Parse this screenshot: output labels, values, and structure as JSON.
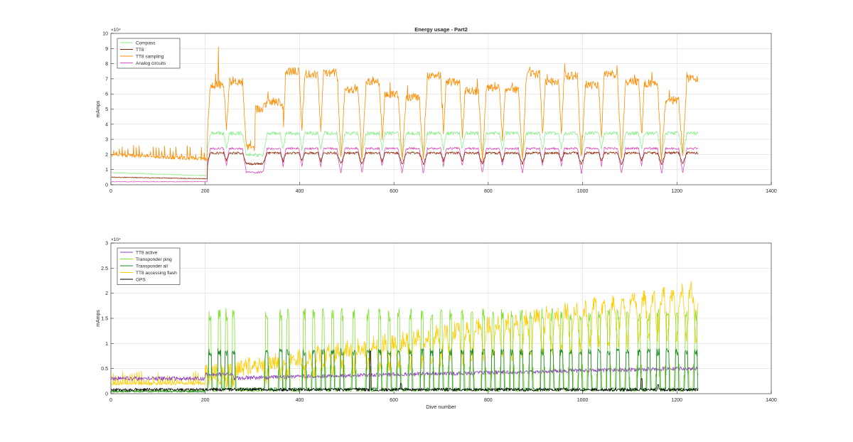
{
  "chart_data": [
    {
      "type": "line",
      "title": "Energy usage - Part2",
      "xlabel": "",
      "ylabel": "mAmps",
      "xlim": [
        0,
        1400
      ],
      "ylim": [
        0,
        100000
      ],
      "x_ticks": [
        "0",
        "200",
        "400",
        "600",
        "800",
        "1000",
        "1200",
        "1400"
      ],
      "y_ticks": [
        "0",
        "1",
        "2",
        "3",
        "4",
        "5",
        "6",
        "7",
        "8",
        "9",
        "10"
      ],
      "y_exponent_label": "×10⁴",
      "grid": true,
      "legend_position": "top-left",
      "series": [
        {
          "name": "Compass",
          "color": "#90ee90"
        },
        {
          "name": "TT8",
          "color": "#8b2500"
        },
        {
          "name": "TT8 sampling",
          "color": "#ff8c00"
        },
        {
          "name": "Analog circuits",
          "color": "#e050c0"
        }
      ],
      "dive_range": [
        1,
        1245
      ],
      "transition_dive": 205,
      "phase1_levels": {
        "Compass": 8000,
        "TT8": 5000,
        "TT8 sampling": 20000,
        "Analog circuits": 2000
      },
      "cycle_peaks_x": [
        225,
        265,
        345,
        385,
        425,
        465,
        510,
        555,
        595,
        640,
        685,
        725,
        765,
        810,
        850,
        895,
        935,
        975,
        1020,
        1060,
        1105,
        1145,
        1190,
        1235
      ],
      "sampling_peak_values": [
        66000,
        68000,
        55000,
        75000,
        73000,
        74000,
        63000,
        68000,
        60000,
        58000,
        72000,
        68000,
        62000,
        64000,
        63000,
        73000,
        68000,
        72000,
        66000,
        73000,
        68000,
        67000,
        56000,
        70000
      ],
      "sampling_trough_values": [
        28000,
        25000,
        50000,
        20000,
        20000,
        22000,
        18000,
        20000,
        18000,
        18000,
        20000,
        22000,
        20000,
        18000,
        20000,
        18000,
        20000,
        18000,
        20000,
        18000,
        20000,
        18000,
        20000,
        22000
      ],
      "peak_max_value": 91000
    },
    {
      "type": "line",
      "title": "",
      "xlabel": "Dive number",
      "ylabel": "mAmps",
      "xlim": [
        0,
        1400
      ],
      "ylim": [
        0,
        30000
      ],
      "x_ticks": [
        "0",
        "200",
        "400",
        "600",
        "800",
        "1000",
        "1200",
        "1400"
      ],
      "y_ticks": [
        "0",
        "0.5",
        "1",
        "1.5",
        "2",
        "2.5",
        "3"
      ],
      "y_exponent_label": "×10⁴",
      "grid": true,
      "legend_position": "top-left",
      "series": [
        {
          "name": "TT8 active",
          "color": "#8e3fbf"
        },
        {
          "name": "Transponder ping",
          "color": "#7fe030"
        },
        {
          "name": "Transponder all",
          "color": "#1a8a2a"
        },
        {
          "name": "TT8 accessing flash",
          "color": "#ffcc00"
        },
        {
          "name": "GPS",
          "color": "#000000"
        }
      ],
      "dive_range": [
        1,
        1245
      ],
      "tt8_active_level": {
        "start": 3000,
        "end": 5000
      },
      "flash_trend": {
        "start": 2000,
        "end": 21000,
        "max": 25500
      },
      "ping_spike_value": 17000,
      "ping_spikes_x": [
        210,
        230,
        245,
        260,
        330,
        360,
        375,
        410,
        430,
        450,
        470,
        490,
        515,
        545,
        570,
        590,
        610,
        635,
        660,
        680,
        700,
        720,
        745,
        765,
        790,
        810,
        830,
        850,
        870,
        890,
        915,
        935,
        955,
        975,
        995,
        1015,
        1035,
        1055,
        1075,
        1095,
        1120,
        1140,
        1160,
        1180,
        1200,
        1220,
        1240
      ],
      "gps_level": 500,
      "gps_spikes": [
        [
          550,
          8500
        ],
        [
          615,
          2000
        ],
        [
          1125,
          3000
        ],
        [
          1160,
          1800
        ]
      ]
    }
  ]
}
